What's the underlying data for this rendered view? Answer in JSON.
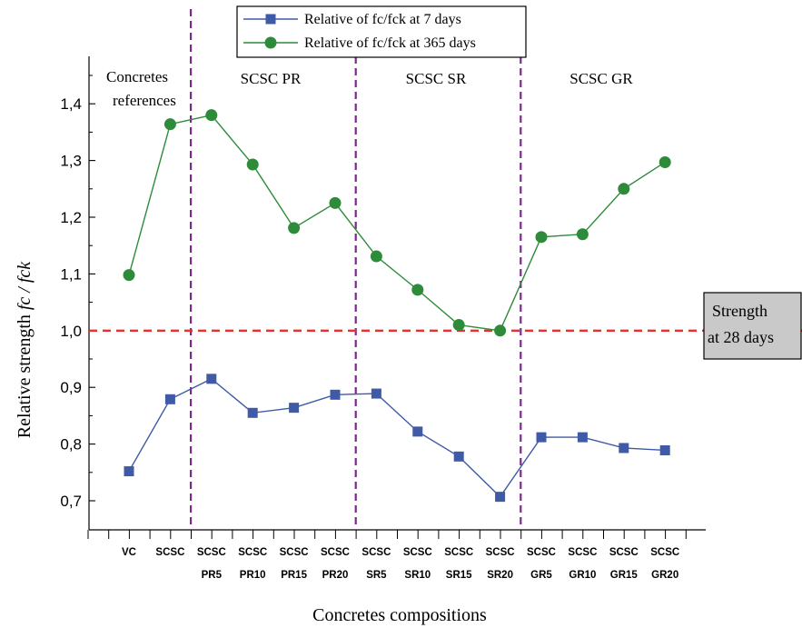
{
  "chart_data": {
    "type": "line",
    "xlabel": "Concretes compositions",
    "ylabel": "Relative strength",
    "ylabel_math": "fc / fck",
    "ylim": [
      0.68,
      1.46
    ],
    "yticks": [
      "0,7",
      "0,8",
      "0,9",
      "1,0",
      "1,1",
      "1,2",
      "1,3",
      "1,4"
    ],
    "categories": [
      [
        "VC",
        ""
      ],
      [
        "SCSC",
        ""
      ],
      [
        "SCSC",
        "PR5"
      ],
      [
        "SCSC",
        "PR10"
      ],
      [
        "SCSC",
        "PR15"
      ],
      [
        "SCSC",
        "PR20"
      ],
      [
        "SCSC",
        "SR5"
      ],
      [
        "SCSC",
        "SR10"
      ],
      [
        "SCSC",
        "SR15"
      ],
      [
        "SCSC",
        "SR20"
      ],
      [
        "SCSC",
        "GR5"
      ],
      [
        "SCSC",
        "GR10"
      ],
      [
        "SCSC",
        "GR15"
      ],
      [
        "SCSC",
        "GR20"
      ]
    ],
    "series": [
      {
        "name": "Relative of  fc/fck at 7 days",
        "color": "#3f5aa6",
        "marker": "square",
        "values": [
          0.752,
          0.879,
          0.915,
          0.855,
          0.864,
          0.887,
          0.889,
          0.822,
          0.778,
          0.707,
          0.812,
          0.812,
          0.793,
          0.789
        ]
      },
      {
        "name": "Relative of  fc/fck at 365 days",
        "color": "#2e8b3a",
        "marker": "circle",
        "values": [
          1.098,
          1.364,
          1.38,
          1.293,
          1.181,
          1.225,
          1.131,
          1.072,
          1.01,
          1.0,
          1.165,
          1.17,
          1.25,
          1.297
        ]
      }
    ],
    "reference_line": {
      "y": 1.0,
      "color": "#e8312f",
      "label_lines": [
        "Strength",
        "at 28 days"
      ]
    },
    "regions": [
      {
        "label_lines": [
          "Concretes",
          "references"
        ],
        "after_index": 1
      },
      {
        "label_lines": [
          "SCSC PR"
        ],
        "after_index": 5
      },
      {
        "label_lines": [
          "SCSC SR"
        ],
        "after_index": 9
      },
      {
        "label_lines": [
          "SCSC GR"
        ],
        "after_index": 13
      }
    ],
    "divider_color": "#7b2a8c",
    "legend_position": "top-center",
    "grid": false
  }
}
